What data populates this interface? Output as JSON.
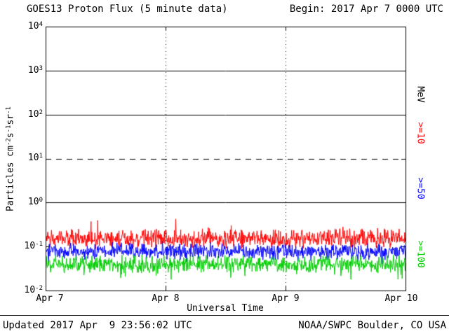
{
  "header": {
    "title": "GOES13 Proton Flux (5 minute data)",
    "begin": "Begin: 2017 Apr 7 0000 UTC"
  },
  "footer": {
    "updated": "Updated 2017 Apr  9 23:56:02 UTC",
    "source": "NOAA/SWPC Boulder, CO USA"
  },
  "right_axis_labels": [
    {
      "text": "MeV",
      "color": "#000000"
    },
    {
      "text": ">=10",
      "color": "#ff0000"
    },
    {
      "text": ">=50",
      "color": "#0000ff"
    },
    {
      "text": ">=100",
      "color": "#00cc00"
    }
  ],
  "chart_data": {
    "type": "line",
    "title": "GOES13 Proton Flux (5 minute data)",
    "xlabel": "Universal Time",
    "ylabel": "Particles cm^-2 s^-1 sr^-1",
    "ylabel_parts": [
      {
        "t": "Particles cm"
      },
      {
        "s": "-2"
      },
      {
        "t": "s"
      },
      {
        "s": "-1"
      },
      {
        "t": "sr"
      },
      {
        "s": "-1"
      }
    ],
    "x_days": 3,
    "points_per_day": 288,
    "x_tick_labels": [
      "Apr 7",
      "Apr 8",
      "Apr 9",
      "Apr 10"
    ],
    "y_ticks": [
      {
        "label": "10",
        "exp": "4"
      },
      {
        "label": "10",
        "exp": "3"
      },
      {
        "label": "10",
        "exp": "2"
      },
      {
        "label": "10",
        "exp": "1"
      },
      {
        "label": "10",
        "exp": "0"
      },
      {
        "label": "10",
        "exp": "-1"
      },
      {
        "label": "10",
        "exp": "-2"
      }
    ],
    "y_log_range": [
      -2,
      4
    ],
    "grid": {
      "solid_decades": [
        3,
        2,
        0
      ],
      "dashed_decades": [
        1
      ],
      "dotted_day_lines": [
        1,
        2
      ]
    },
    "series": [
      {
        "name": ">=10",
        "unit": "MeV",
        "color": "#ff0000",
        "approx_mean_flux": 0.15,
        "log_mean": -0.82,
        "log_noise": 0.13,
        "spike_up_prob": 0.02,
        "spike_up_max": 0.3,
        "spike_down_prob": 0.02,
        "spike_down_max": 0.12,
        "seed": 20170407
      },
      {
        "name": ">=50",
        "unit": "MeV",
        "color": "#0000ff",
        "approx_mean_flux": 0.075,
        "log_mean": -1.11,
        "log_noise": 0.11,
        "spike_up_prob": 0.015,
        "spike_up_max": 0.12,
        "spike_down_prob": 0.04,
        "spike_down_max": 0.22,
        "seed": 5017
      },
      {
        "name": ">=100",
        "unit": "MeV",
        "color": "#00cc00",
        "approx_mean_flux": 0.04,
        "log_mean": -1.4,
        "log_noise": 0.12,
        "spike_up_prob": 0.012,
        "spike_up_max": 0.12,
        "spike_down_prob": 0.05,
        "spike_down_max": 0.3,
        "seed": 10017
      }
    ]
  }
}
